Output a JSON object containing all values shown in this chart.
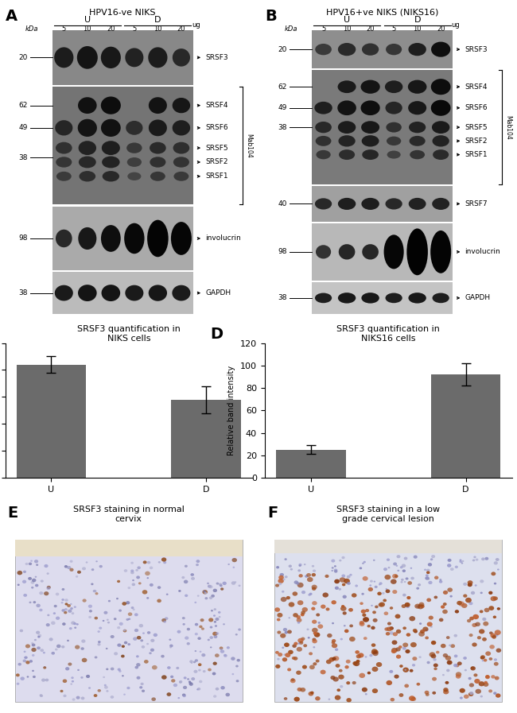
{
  "panel_A_title": "HPV16-ve NIKS",
  "panel_B_title": "HPV16+ve NIKS (NIKS16)",
  "panel_C_title": "SRSF3 quantification in\nNIKS cells",
  "panel_D_title": "SRSF3 quantification in\nNIKS16 cells",
  "panel_E_title": "SRSF3 staining in normal\ncervix",
  "panel_F_title": "SRSF3 staining in a low\ngrade cervical lesion",
  "bar_color": "#6b6b6b",
  "bar_C_values": [
    42,
    29
  ],
  "bar_C_errors": [
    3,
    5
  ],
  "bar_D_values": [
    25,
    92
  ],
  "bar_D_errors": [
    4,
    10
  ],
  "bar_labels": [
    "U",
    "D"
  ],
  "C_ylim": [
    0,
    50
  ],
  "C_yticks": [
    0,
    10,
    20,
    30,
    40,
    50
  ],
  "D_ylim": [
    0,
    120
  ],
  "D_yticks": [
    0,
    20,
    40,
    60,
    80,
    100,
    120
  ],
  "ylabel": "Relative band intensity",
  "bg_color": "#ffffff"
}
